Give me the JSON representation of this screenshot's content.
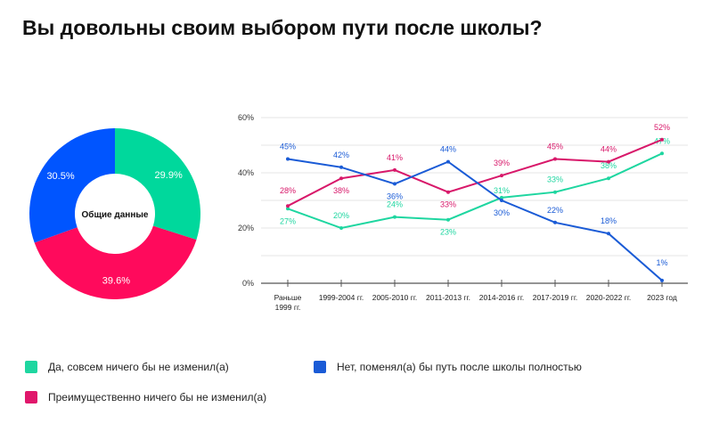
{
  "title": "Вы довольны своим выбором пути после школы?",
  "colors": {
    "green": "#1ed6a0",
    "pink": "#e0176b",
    "blue": "#1a5bd6"
  },
  "chart_data": [
    {
      "type": "pie",
      "center_label": "Общие данные",
      "slices": [
        {
          "name": "Да, совсем ничего бы не изменил(а)",
          "value": 29.9,
          "label": "29.9%",
          "color": "#00d89c"
        },
        {
          "name": "Преимущественно ничего бы не изменил(а)",
          "value": 39.6,
          "label": "39.6%",
          "color": "#ff0a5c"
        },
        {
          "name": "Нет, поменял(а) бы путь после школы полностью",
          "value": 30.5,
          "label": "30.5%",
          "color": "#0055ff"
        }
      ]
    },
    {
      "type": "line",
      "categories": [
        "Раньше 1999 гг.",
        "1999-2004 гг.",
        "2005-2010 гг.",
        "2011-2013 гг.",
        "2014-2016 гг.",
        "2017-2019 гг.",
        "2020-2022 гг.",
        "2023 год"
      ],
      "ylim": [
        0,
        60
      ],
      "yticks": [
        "0%",
        "20%",
        "40%",
        "60%"
      ],
      "grid": true,
      "series": [
        {
          "name": "Да, совсем ничего бы не изменил(а)",
          "color": "#1ed6a0",
          "values": [
            27,
            20,
            24,
            23,
            31,
            33,
            38,
            47
          ]
        },
        {
          "name": "Преимущественно ничего бы не изменил(а)",
          "color": "#d8186a",
          "values": [
            28,
            38,
            41,
            33,
            39,
            45,
            44,
            52
          ]
        },
        {
          "name": "Нет, поменял(а) бы путь после школы полностью",
          "color": "#1a5bd6",
          "values": [
            45,
            42,
            36,
            44,
            30,
            22,
            18,
            1
          ]
        }
      ]
    }
  ],
  "legend": [
    {
      "label": "Да, совсем ничего бы не изменил(а)",
      "color": "#1ed6a0"
    },
    {
      "label": "Нет, поменял(а) бы путь после школы полностью",
      "color": "#1a5bd6"
    },
    {
      "label": "Преимущественно ничего бы не изменил(а)",
      "color": "#e0176b"
    }
  ]
}
